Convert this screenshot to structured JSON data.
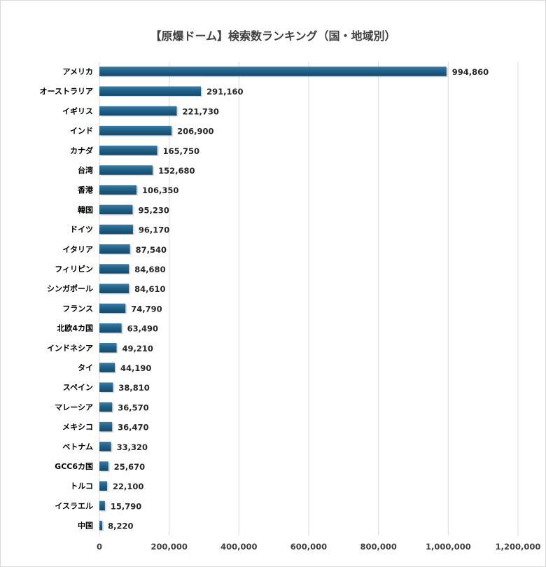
{
  "chart_data": {
    "type": "bar",
    "orientation": "horizontal",
    "title": "【原爆ドーム】検索数ランキング（国・地域別）",
    "categories": [
      "アメリカ",
      "オーストラリア",
      "イギリス",
      "インド",
      "カナダ",
      "台湾",
      "香港",
      "韓国",
      "ドイツ",
      "イタリア",
      "フィリピン",
      "シンガポール",
      "フランス",
      "北欧4カ国",
      "インドネシア",
      "タイ",
      "スペイン",
      "マレーシア",
      "メキシコ",
      "ベトナム",
      "GCC6カ国",
      "トルコ",
      "イスラエル",
      "中国"
    ],
    "values": [
      994860,
      291160,
      221730,
      206900,
      165750,
      152680,
      106350,
      95230,
      96170,
      87540,
      84680,
      84610,
      74790,
      63490,
      49210,
      44190,
      38810,
      36570,
      36470,
      33320,
      25670,
      22100,
      15790,
      8220
    ],
    "value_labels": [
      "994,860",
      "291,160",
      "221,730",
      "206,900",
      "165,750",
      "152,680",
      "106,350",
      "95,230",
      "96,170",
      "87,540",
      "84,680",
      "84,610",
      "74,790",
      "63,490",
      "49,210",
      "44,190",
      "38,810",
      "36,570",
      "36,470",
      "33,320",
      "25,670",
      "22,100",
      "15,790",
      "8,220"
    ],
    "xlim": [
      0,
      1200000
    ],
    "xticks": [
      0,
      200000,
      400000,
      600000,
      800000,
      1000000,
      1200000
    ],
    "xtick_labels": [
      "0",
      "200,000",
      "400,000",
      "600,000",
      "800,000",
      "1,000,000",
      "1,200,000"
    ],
    "grid": true,
    "bar_color": "#1f5f86",
    "xlabel": "",
    "ylabel": ""
  }
}
